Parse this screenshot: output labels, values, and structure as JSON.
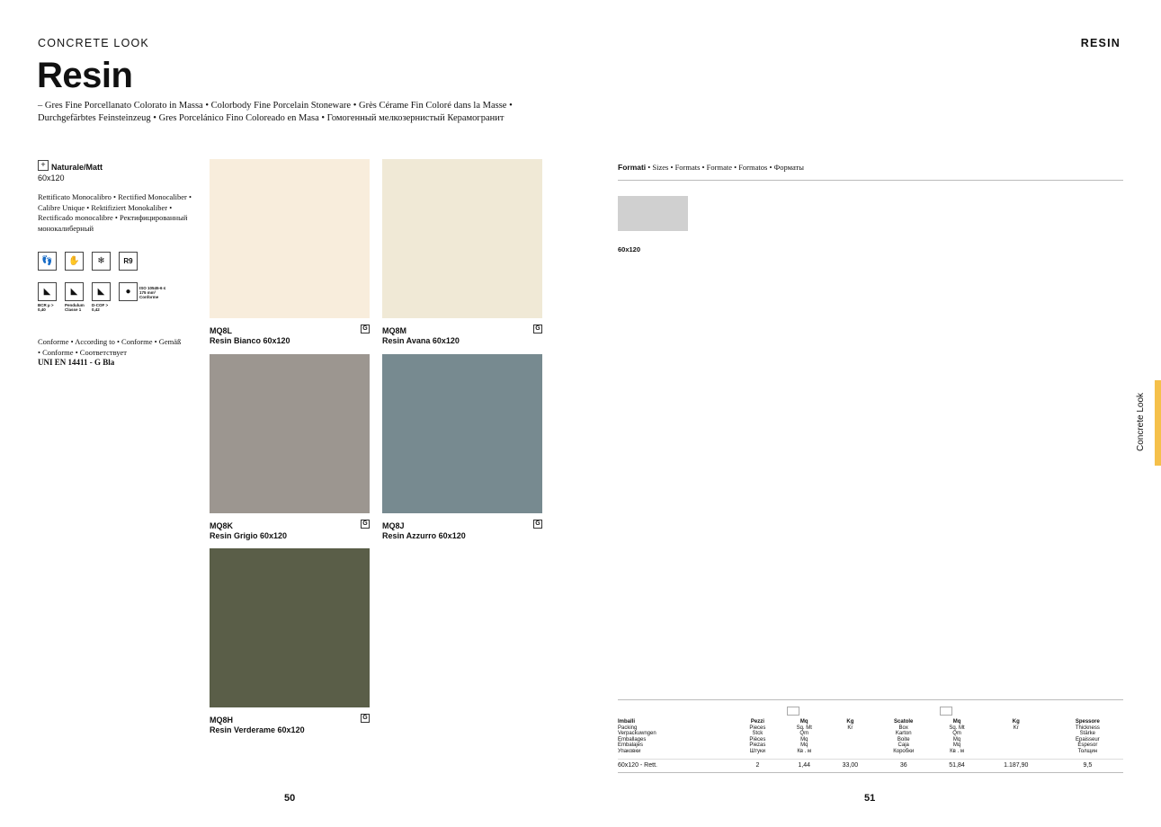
{
  "header": {
    "kicker": "CONCRETE LOOK",
    "title": "Resin",
    "right_kicker": "RESIN",
    "subtitle_1": "– Gres Fine Porcellanato Colorato in Massa • Colorbody Fine Porcelain Stoneware • Grès Cérame Fin Coloré dans la Masse •",
    "subtitle_2": "Durchgefärbtes Feinsteinzeug • Gres Porcelánico Fino Coloreado en Masa • Гомогенный мелкозернистый Керамогранит"
  },
  "specs": {
    "finish": "Naturale/Matt",
    "size": "60x120",
    "rectified": "Rettificato Monocalibro • Rectified Monocaliber • Calibre Unique • Rektifiziert Monokaliber • Rectificado monocalibre • Ректифицированный монокалиберный",
    "r9": "R9",
    "bcr": "BCR µ > 0,40",
    "pendulum": "Pendulum Classe 1",
    "dcof": "D-COF > 0,42",
    "iso": "ISO 10545-6 ≤ 175 mm³ Conforme",
    "conforme": "Conforme • According to • Conforme • Gemäß • Conforme • Соответствует",
    "norm": "UNI EN 14411 - G Bla"
  },
  "tiles": [
    {
      "code": "MQ8L",
      "name": "Resin Bianco 60x120",
      "badge": "G",
      "color": "#f8eddc"
    },
    {
      "code": "MQ8M",
      "name": "Resin Avana 60x120",
      "badge": "G",
      "color": "#f0e9d6"
    },
    {
      "code": "MQ8K",
      "name": "Resin Grigio 60x120",
      "badge": "G",
      "color": "#9c9690"
    },
    {
      "code": "MQ8J",
      "name": "Resin Azzurro 60x120",
      "badge": "G",
      "color": "#778a90"
    },
    {
      "code": "MQ8H",
      "name": "Resin Verderame 60x120",
      "badge": "G",
      "color": "#5a5e48"
    }
  ],
  "formats": {
    "title": "Formati",
    "langs": " • Sizes • Formats • Formate • Formatos • Форматы",
    "size": "60x120"
  },
  "packing": {
    "headers": [
      [
        "Imballi",
        "Packing",
        "Verpackuwngen",
        "Emballages",
        "Embalajes",
        "Упаковки"
      ],
      [
        "Pezzi",
        "Pieces",
        "Stck",
        "Pièces",
        "Piezas",
        "Штуки"
      ],
      [
        "Mq",
        "Sq. Mt",
        "Qm",
        "Mq",
        "Mq",
        "Кв . м"
      ],
      [
        "Kg",
        "Kr"
      ],
      [
        "Scatole",
        "Box",
        "Karton",
        "Boite",
        "Caja",
        "Коробки"
      ],
      [
        "Mq",
        "Sq. Mt",
        "Qm",
        "Mq",
        "Mq",
        "Кв . м"
      ],
      [
        "Kg",
        "Kr"
      ],
      [
        "Spessore",
        "Thickness",
        "Stärke",
        "Epaisseur",
        "Espesor",
        "Толщин"
      ]
    ],
    "row": [
      "60x120 - Rett.",
      "2",
      "1,44",
      "33,00",
      "36",
      "51,84",
      "1.187,90",
      "9,5"
    ]
  },
  "pages": {
    "left": "50",
    "right": "51"
  },
  "side_tab": {
    "label": "Concrete Look",
    "color": "#f5c04a"
  }
}
